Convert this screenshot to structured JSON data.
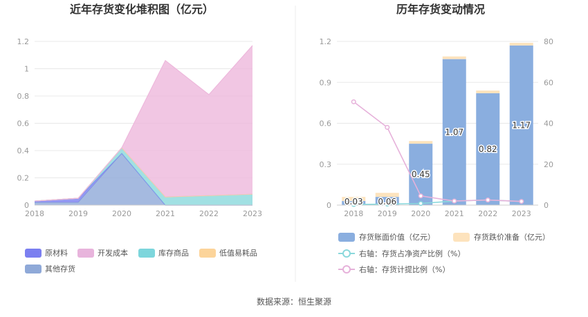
{
  "source_text": "数据来源：恒生聚源",
  "chart_data": [
    {
      "type": "area",
      "title": "近年存货变化堆积图（亿元）",
      "x": [
        "2018",
        "2019",
        "2020",
        "2021",
        "2022",
        "2023"
      ],
      "ylim": [
        0,
        1.2
      ],
      "yticks": [
        "0",
        "0.2",
        "0.4",
        "0.6",
        "0.8",
        "1",
        "1.2"
      ],
      "stacked": true,
      "series": [
        {
          "name": "其他存货",
          "color": "#8fa9d8",
          "values": [
            0.02,
            0.02,
            0.38,
            0.0,
            0.0,
            0.0
          ]
        },
        {
          "name": "原材料",
          "color": "#7b7ff0",
          "values": [
            0.01,
            0.03,
            0.0,
            0.0,
            0.0,
            0.0
          ]
        },
        {
          "name": "库存商品",
          "color": "#8ad8dc",
          "values": [
            0.0,
            0.0,
            0.04,
            0.06,
            0.07,
            0.08
          ]
        },
        {
          "name": "低值易耗品",
          "color": "#fcd49a",
          "values": [
            0.0,
            0.0,
            0.0,
            0.0,
            0.0,
            0.0
          ]
        },
        {
          "name": "开发成本",
          "color": "#edb8dc",
          "values": [
            0.0,
            0.0,
            0.0,
            1.0,
            0.74,
            1.09
          ]
        }
      ],
      "legend": [
        {
          "name": "原材料",
          "color": "#7b7ff0"
        },
        {
          "name": "开发成本",
          "color": "#e8b4dc"
        },
        {
          "name": "库存商品",
          "color": "#7dd6dc"
        },
        {
          "name": "低值易耗品",
          "color": "#fcd49a"
        },
        {
          "name": "其他存货",
          "color": "#8fa9d8"
        }
      ]
    },
    {
      "type": "bar",
      "title": "历年存货变动情况",
      "categories": [
        "2018",
        "2019",
        "2020",
        "2021",
        "2022",
        "2023"
      ],
      "ylim": [
        0,
        1.2
      ],
      "yticks": [
        "0",
        "0.3",
        "0.6",
        "0.9",
        "1.2"
      ],
      "y2lim": [
        0,
        80
      ],
      "y2ticks": [
        "0",
        "20",
        "40",
        "60",
        "80"
      ],
      "series": [
        {
          "name": "存货账面价值（亿元）",
          "color": "#8aaedf",
          "values": [
            0.03,
            0.06,
            0.45,
            1.07,
            0.82,
            1.17
          ],
          "labels": [
            "0.03",
            "0.06",
            "0.45",
            "1.07",
            "0.82",
            "1.17"
          ]
        },
        {
          "name": "存货跌价准备（亿元）",
          "color": "#fde3bd",
          "values": [
            0.03,
            0.03,
            0.02,
            0.02,
            0.02,
            0.02
          ]
        },
        {
          "name": "右轴：存货占净资产比例（%）",
          "color": "#8ad8dc",
          "axis": "right",
          "type": "line",
          "values": [
            0.3,
            0.5,
            0.8,
            2.0,
            2.5,
            1.8
          ]
        },
        {
          "name": "右轴：存货计提比例（%）",
          "color": "#e6b1da",
          "axis": "right",
          "type": "line",
          "values": [
            50.5,
            38.0,
            4.5,
            2.0,
            2.5,
            1.8
          ]
        }
      ]
    }
  ]
}
